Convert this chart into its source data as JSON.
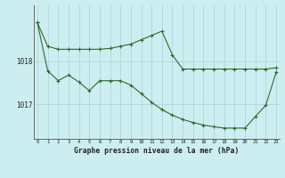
{
  "line1_x": [
    0,
    1,
    2,
    3,
    4,
    5,
    6,
    7,
    8,
    9,
    10,
    11,
    12,
    13,
    14,
    15,
    16,
    17,
    18,
    19,
    20,
    21,
    22,
    23
  ],
  "line1_y": [
    1018.9,
    1018.35,
    1018.28,
    1018.28,
    1018.28,
    1018.28,
    1018.28,
    1018.3,
    1018.35,
    1018.4,
    1018.5,
    1018.6,
    1018.7,
    1018.15,
    1017.82,
    1017.82,
    1017.82,
    1017.82,
    1017.82,
    1017.82,
    1017.82,
    1017.82,
    1017.82,
    1017.85
  ],
  "line2_x": [
    0,
    1,
    2,
    3,
    4,
    5,
    6,
    7,
    8,
    9,
    10,
    11,
    12,
    13,
    14,
    15,
    16,
    17,
    18,
    19,
    20,
    21,
    22,
    23
  ],
  "line2_y": [
    1018.9,
    1017.78,
    1017.55,
    1017.68,
    1017.52,
    1017.32,
    1017.55,
    1017.55,
    1017.55,
    1017.45,
    1017.25,
    1017.05,
    1016.88,
    1016.75,
    1016.65,
    1016.58,
    1016.52,
    1016.48,
    1016.45,
    1016.45,
    1016.45,
    1016.72,
    1016.98,
    1017.75
  ],
  "line_color": "#2d6a2d",
  "bg_color": "#cceef0",
  "grid_color": "#aad8dc",
  "xlabel": "Graphe pression niveau de la mer (hPa)",
  "yticks": [
    1017,
    1018
  ],
  "xticks": [
    0,
    1,
    2,
    3,
    4,
    5,
    6,
    7,
    8,
    9,
    10,
    11,
    12,
    13,
    14,
    15,
    16,
    17,
    18,
    19,
    20,
    21,
    22,
    23
  ],
  "ylim": [
    1016.2,
    1019.3
  ],
  "xlim": [
    -0.3,
    23.3
  ]
}
